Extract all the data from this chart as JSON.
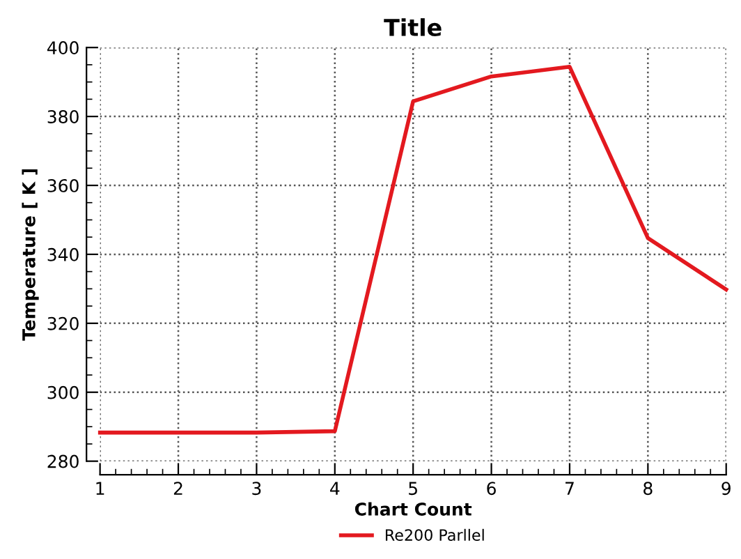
{
  "chart_data": {
    "type": "line",
    "title": "Title",
    "xlabel": "Chart Count",
    "ylabel": "Temperature [ K ]",
    "x": [
      1,
      2,
      3,
      4,
      5,
      6,
      7,
      8,
      9
    ],
    "series": [
      {
        "name": "Re200 Parllel",
        "color": "#e3191f",
        "values": [
          288.3,
          288.3,
          288.3,
          288.7,
          384.4,
          391.6,
          394.4,
          344.7,
          329.8
        ]
      }
    ],
    "xlim": [
      1,
      9
    ],
    "ylim": [
      280,
      400
    ],
    "xticks": [
      1,
      2,
      3,
      4,
      5,
      6,
      7,
      8,
      9
    ],
    "yticks": [
      280,
      300,
      320,
      340,
      360,
      380,
      400
    ],
    "grid": true,
    "legend": "bottom",
    "marker": "none",
    "line_style": "solid"
  }
}
